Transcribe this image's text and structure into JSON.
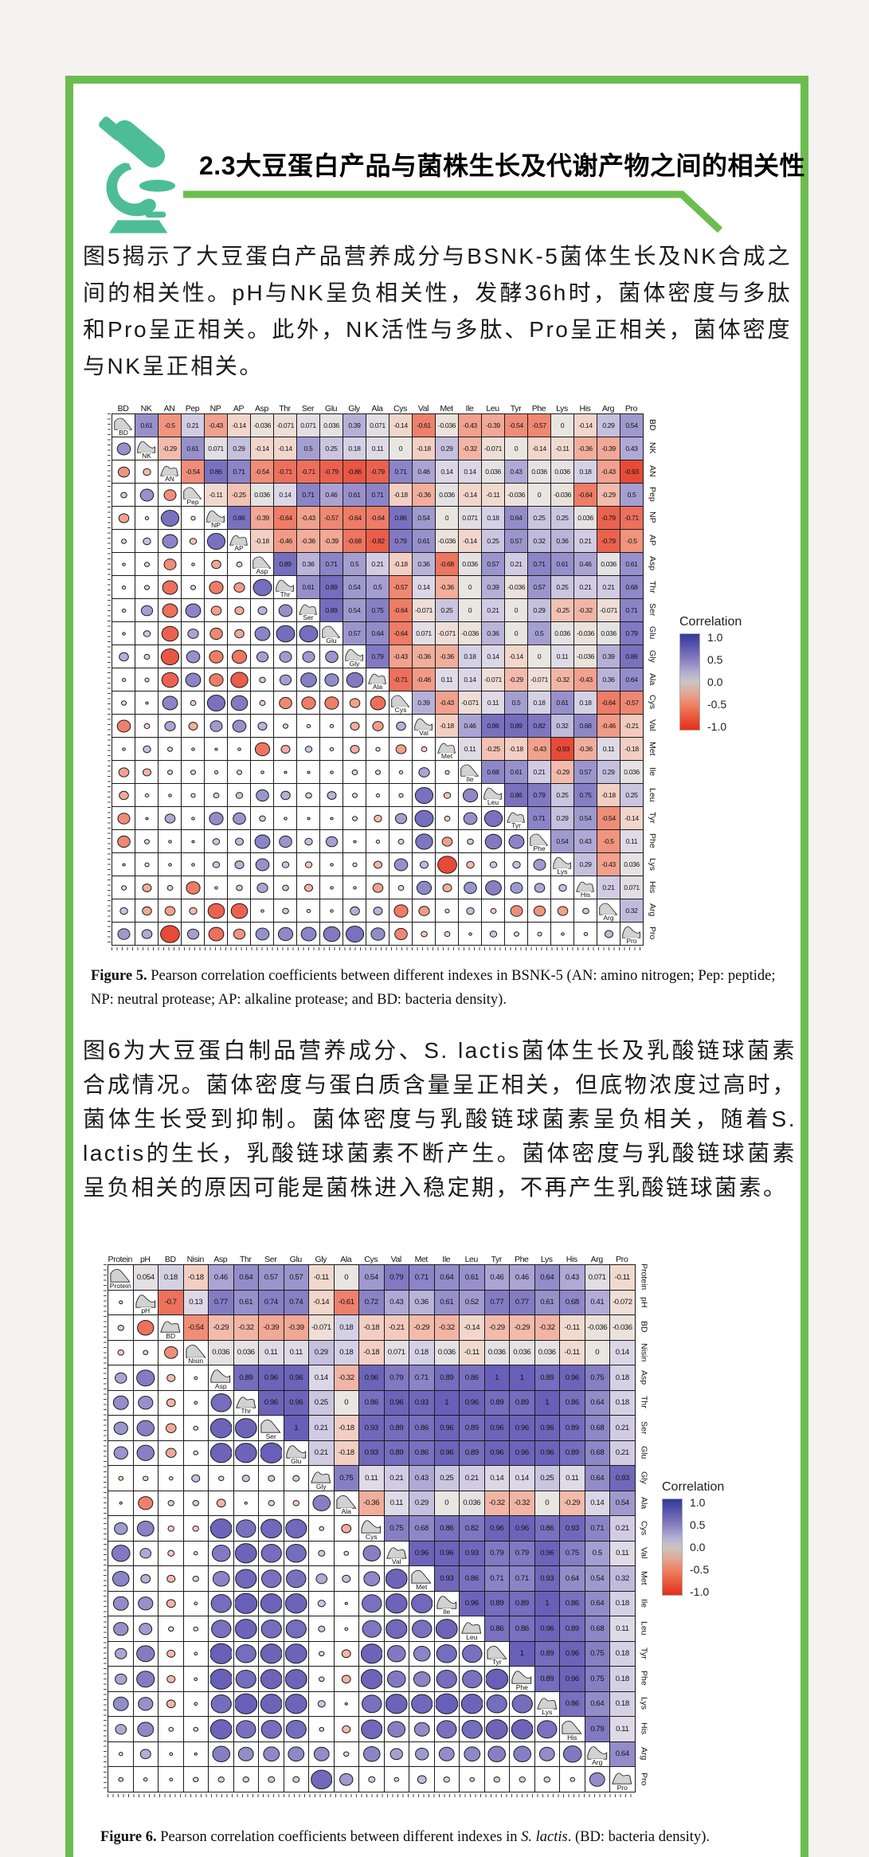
{
  "page": {
    "frame_green": "#6cbd4f",
    "icon_teal": "#4dbd97"
  },
  "header": {
    "section_title": "2.3大豆蛋白产品与菌株生长及代谢产物之间的相关性"
  },
  "paragraphs": {
    "p1": "图5揭示了大豆蛋白产品营养成分与BSNK-5菌体生长及NK合成之间的相关性。pH与NK呈负相关性，发酵36h时，菌体密度与多肽和Pro呈正相关。此外，NK活性与多肽、Pro呈正相关，菌体密度与NK呈正相关。",
    "p2": "图6为大豆蛋白制品营养成分、S. lactis菌体生长及乳酸链球菌素合成情况。菌体密度与蛋白质含量呈正相关，但底物浓度过高时，菌体生长受到抑制。菌体密度与乳酸链球菌素呈负相关，随着S. lactis的生长，乳酸链球菌素不断产生。菌体密度与乳酸链球菌素呈负相关的原因可能是菌株进入稳定期，不再产生乳酸链球菌素。"
  },
  "captions": {
    "fig5": {
      "label": "Figure 5.",
      "text": " Pearson correlation coefficients between different indexes in BSNK-5 (AN: amino nitrogen; Pep: peptide; NP: neutral protease; AP: alkaline protease; and BD: bacteria density)."
    },
    "fig6": {
      "label": "Figure 6.",
      "pre": " Pearson correlation coefficients between different indexes in ",
      "italic": "S. lactis",
      "post": ". (BD: bacteria density)."
    }
  },
  "chart_data": [
    {
      "type": "heatmap",
      "name": "figure5_pearson_correlation_matrix_BSNK5",
      "layout": "upper triangle = coefficient values, diagonal = density curves with variable labels, lower triangle = circles sized/colored by coefficient",
      "labels": [
        "BD",
        "NK",
        "AN",
        "Pep",
        "NP",
        "AP",
        "Asp",
        "Thr",
        "Ser",
        "Glu",
        "Gly",
        "Ala",
        "Cys",
        "Val",
        "Met",
        "Ile",
        "Leu",
        "Tyr",
        "Phe",
        "Lys",
        "His",
        "Arg",
        "Pro"
      ],
      "upper_triangle": [
        [
          0.61,
          -0.5,
          0.21,
          -0.43,
          -0.14,
          -0.036,
          -0.071,
          0.071,
          0.036,
          0.39,
          0.071,
          -0.14,
          -0.61,
          -0.036,
          -0.43,
          -0.39,
          -0.54,
          -0.57,
          0,
          -0.14,
          0.29,
          0.54
        ],
        [
          -0.29,
          0.61,
          0.071,
          0.29,
          -0.14,
          -0.14,
          0.5,
          0.25,
          0.18,
          0.11,
          0,
          -0.18,
          0.29,
          -0.32,
          -0.071,
          0,
          -0.14,
          -0.11,
          -0.36,
          -0.39,
          0.43
        ],
        [
          -0.54,
          0.86,
          0.71,
          -0.54,
          -0.71,
          -0.71,
          -0.79,
          -0.86,
          -0.79,
          0.71,
          0.46,
          0.14,
          0.14,
          0.036,
          0.43,
          0.036,
          0.036,
          0.18,
          -0.43,
          -0.93
        ],
        [
          -0.11,
          -0.25,
          0.036,
          0.14,
          0.71,
          0.46,
          0.61,
          0.71,
          -0.18,
          -0.36,
          0.036,
          -0.14,
          -0.11,
          -0.036,
          0,
          -0.036,
          -0.64,
          -0.29,
          0.5
        ],
        [
          0.86,
          -0.39,
          -0.64,
          -0.43,
          -0.57,
          -0.64,
          -0.64,
          0.86,
          0.54,
          0,
          0.071,
          0.18,
          0.64,
          0.25,
          0.25,
          0.036,
          -0.79,
          -0.71
        ],
        [
          -0.18,
          -0.46,
          -0.36,
          -0.39,
          -0.68,
          -0.82,
          0.79,
          0.61,
          -0.036,
          -0.14,
          0.25,
          0.57,
          0.32,
          0.36,
          0.21,
          -0.79,
          -0.5
        ],
        [
          0.89,
          0.36,
          0.71,
          0.5,
          0.21,
          -0.18,
          0.36,
          -0.68,
          0.036,
          0.57,
          0.21,
          0.71,
          0.61,
          0.46,
          0.036,
          0.61
        ],
        [
          0.61,
          0.89,
          0.54,
          0.5,
          -0.57,
          0.14,
          -0.36,
          0,
          0.39,
          -0.036,
          0.57,
          0.25,
          0.21,
          0.21,
          0.68
        ],
        [
          0.89,
          0.54,
          0.75,
          -0.64,
          -0.071,
          0.25,
          0,
          0.21,
          0,
          0.29,
          -0.25,
          -0.32,
          -0.071,
          0.71
        ],
        [
          0.57,
          0.64,
          -0.64,
          0.071,
          -0.071,
          -0.036,
          0.36,
          0,
          0.5,
          0.036,
          -0.036,
          0.036,
          0.79
        ],
        [
          0.79,
          -0.43,
          -0.36,
          -0.36,
          0.18,
          0.14,
          -0.14,
          0,
          0.11,
          -0.036,
          0.39,
          0.86
        ],
        [
          -0.71,
          -0.46,
          0.11,
          0.14,
          -0.071,
          -0.29,
          -0.071,
          -0.32,
          -0.43,
          0.36,
          0.64
        ],
        [
          0.39,
          -0.43,
          -0.071,
          0.11,
          0.5,
          0.18,
          0.61,
          0.18,
          -0.64,
          -0.57
        ],
        [
          -0.18,
          0.46,
          0.86,
          0.89,
          0.82,
          0.32,
          0.68,
          -0.46,
          -0.21
        ],
        [
          0.11,
          -0.25,
          -0.18,
          -0.43,
          -0.93,
          -0.36,
          0.11,
          -0.18
        ],
        [
          0.68,
          0.61,
          0.21,
          -0.29,
          0.57,
          0.29,
          0.036
        ],
        [
          0.86,
          0.79,
          0.25,
          0.75,
          -0.18,
          0.25
        ],
        [
          0.71,
          0.29,
          0.54,
          -0.54,
          -0.14
        ],
        [
          0.54,
          0.43,
          -0.5,
          0.11
        ],
        [
          0.29,
          -0.43,
          0.036
        ],
        [
          0.21,
          0.071
        ],
        [
          0.32
        ]
      ],
      "legend": {
        "title": "Correlation",
        "ticks": [
          "1.0",
          "0.5",
          "0.0",
          "-0.5",
          "-1.0"
        ]
      },
      "colormap": {
        "-1.0": "#e52d1a",
        "0.0": "#e9e6e2",
        "1.0": "#313a9e"
      }
    },
    {
      "type": "heatmap",
      "name": "figure6_pearson_correlation_matrix_S_lactis",
      "layout": "upper triangle = coefficient values, diagonal = density curves with variable labels, lower triangle = circles sized/colored by coefficient",
      "labels": [
        "Protein",
        "pH",
        "BD",
        "Nisin",
        "Asp",
        "Thr",
        "Ser",
        "Glu",
        "Gly",
        "Ala",
        "Cys",
        "Val",
        "Met",
        "Ile",
        "Leu",
        "Tyr",
        "Phe",
        "Lys",
        "His",
        "Arg",
        "Pro"
      ],
      "upper_triangle": [
        [
          0.054,
          0.18,
          -0.18,
          0.46,
          0.64,
          0.57,
          0.57,
          -0.11,
          0,
          0.54,
          0.79,
          0.71,
          0.64,
          0.61,
          0.46,
          0.46,
          0.64,
          0.43,
          0.071,
          -0.11
        ],
        [
          -0.7,
          0.13,
          0.77,
          0.61,
          0.74,
          0.74,
          -0.14,
          -0.61,
          0.72,
          0.43,
          0.36,
          0.61,
          0.52,
          0.77,
          0.77,
          0.61,
          0.68,
          0.41,
          -0.072
        ],
        [
          -0.54,
          -0.29,
          -0.32,
          -0.39,
          -0.39,
          -0.071,
          0.18,
          -0.18,
          -0.21,
          -0.29,
          -0.32,
          -0.14,
          -0.29,
          -0.29,
          -0.32,
          -0.11,
          -0.036,
          -0.036
        ],
        [
          0.036,
          0.036,
          0.11,
          0.11,
          0.29,
          0.18,
          -0.18,
          0.071,
          0.18,
          0.036,
          -0.11,
          0.036,
          0.036,
          0.036,
          -0.11,
          0,
          0.14
        ],
        [
          0.89,
          0.96,
          0.96,
          0.14,
          -0.32,
          0.96,
          0.79,
          0.71,
          0.89,
          0.86,
          1,
          1,
          0.89,
          0.96,
          0.75,
          0.18
        ],
        [
          0.96,
          0.96,
          0.25,
          0,
          0.86,
          0.96,
          0.93,
          1,
          0.96,
          0.89,
          0.89,
          1,
          0.86,
          0.64,
          0.18
        ],
        [
          1,
          0.21,
          -0.18,
          0.93,
          0.89,
          0.86,
          0.96,
          0.89,
          0.96,
          0.96,
          0.96,
          0.89,
          0.68,
          0.21
        ],
        [
          0.21,
          -0.18,
          0.93,
          0.89,
          0.86,
          0.96,
          0.89,
          0.96,
          0.96,
          0.96,
          0.89,
          0.68,
          0.21
        ],
        [
          0.75,
          0.11,
          0.21,
          0.43,
          0.25,
          0.21,
          0.14,
          0.14,
          0.25,
          0.11,
          0.64,
          0.93
        ],
        [
          -0.36,
          0.11,
          0.29,
          0,
          0.036,
          -0.32,
          -0.32,
          0,
          -0.29,
          0.14,
          0.54
        ],
        [
          0.75,
          0.68,
          0.86,
          0.82,
          0.96,
          0.96,
          0.86,
          0.93,
          0.71,
          0.21
        ],
        [
          0.96,
          0.96,
          0.93,
          0.79,
          0.79,
          0.96,
          0.75,
          0.5,
          0.11
        ],
        [
          0.93,
          0.86,
          0.71,
          0.71,
          0.93,
          0.64,
          0.54,
          0.32
        ],
        [
          0.96,
          0.89,
          0.89,
          1,
          0.86,
          0.64,
          0.18
        ],
        [
          0.86,
          0.86,
          0.96,
          0.89,
          0.68,
          0.11
        ],
        [
          1,
          0.89,
          0.96,
          0.75,
          0.18
        ],
        [
          0.89,
          0.96,
          0.75,
          0.18
        ],
        [
          0.86,
          0.64,
          0.18
        ],
        [
          0.79,
          0.11
        ],
        [
          0.64
        ]
      ],
      "legend": {
        "title": "Correlation",
        "ticks": [
          "1.0",
          "0.5",
          "0.0",
          "-0.5",
          "-1.0"
        ]
      },
      "colormap": {
        "-1.0": "#e52d1a",
        "0.0": "#e9e6e2",
        "1.0": "#313a9e"
      }
    }
  ]
}
